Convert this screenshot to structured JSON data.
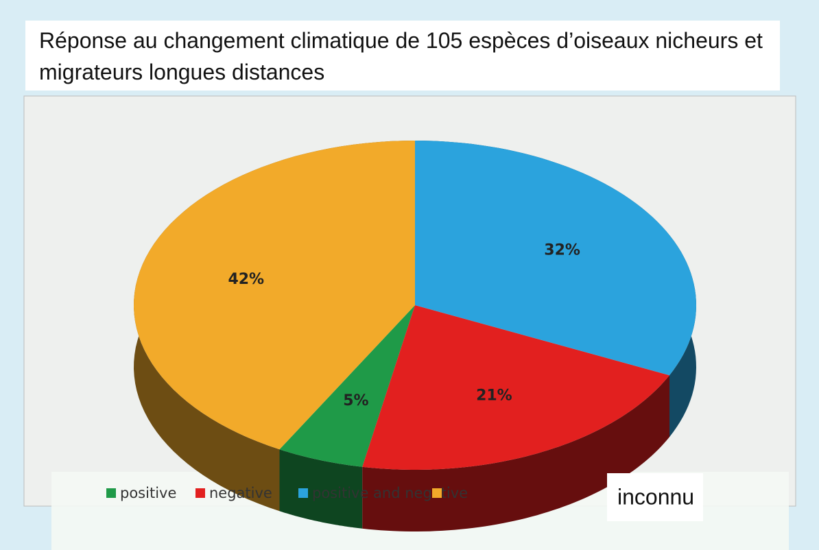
{
  "chart_data": {
    "type": "pie3d",
    "title": "Réponse au changement climatique de 105 espèces d’oiseaux nicheurs et migrateurs longues distances",
    "categories": [
      "positive",
      "negative",
      "positive and negative",
      "inconnu"
    ],
    "values": [
      5,
      21,
      32,
      42
    ],
    "value_labels": [
      "5%",
      "21%",
      "32%",
      "42%"
    ],
    "colors": [
      "#1f9a48",
      "#e2201f",
      "#2ba3dd",
      "#f2aa2a"
    ],
    "legend": "bottom"
  }
}
